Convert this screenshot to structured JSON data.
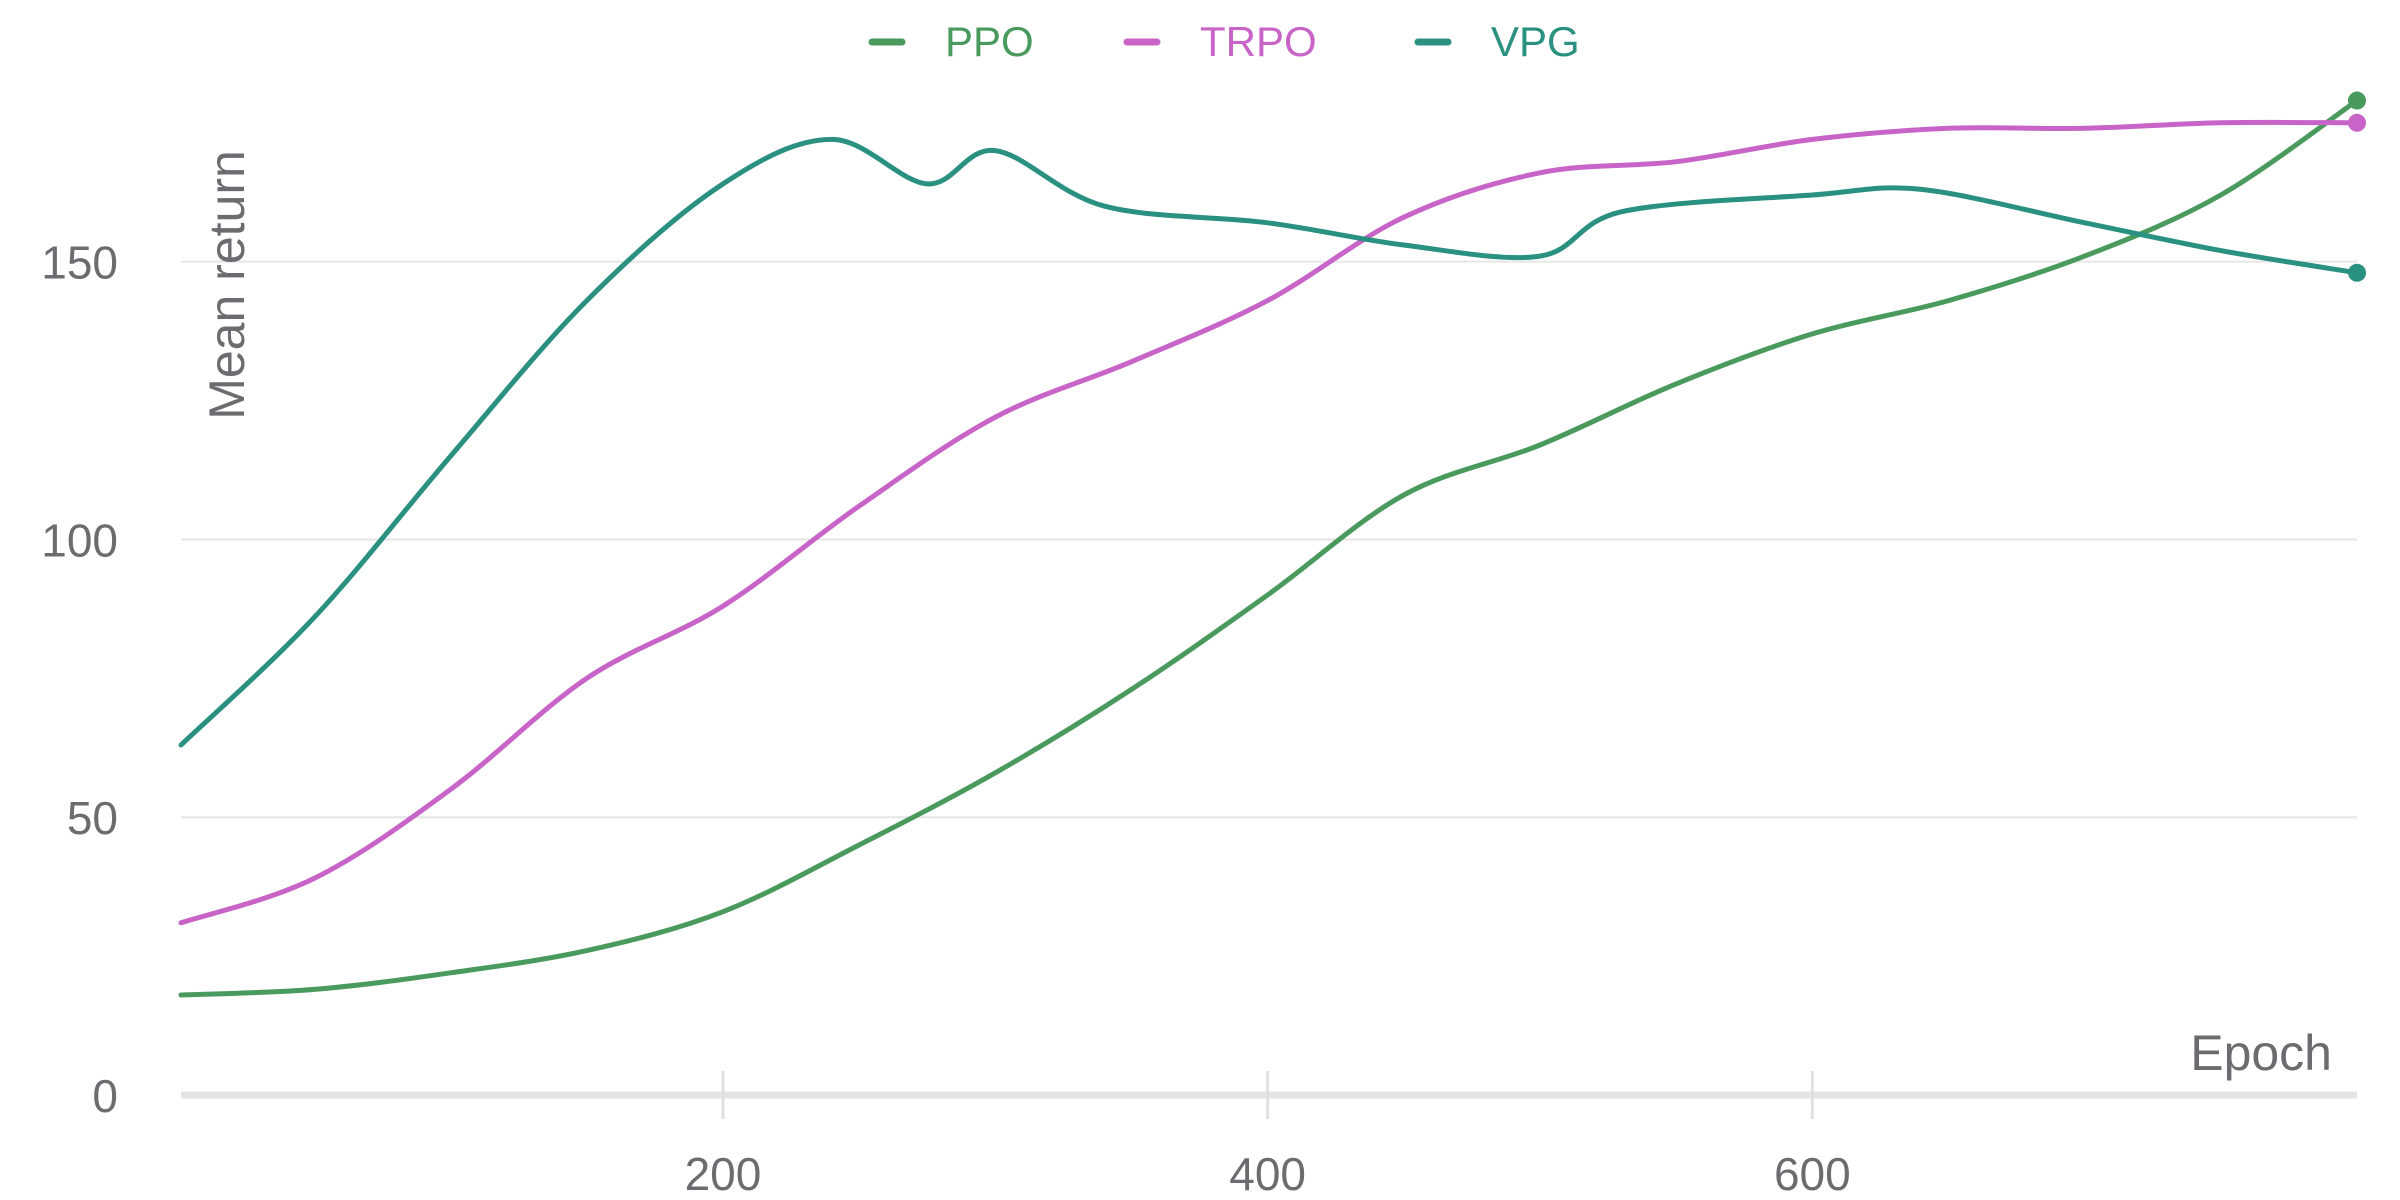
{
  "chart_data": {
    "type": "line",
    "title": "",
    "xlabel": "Epoch",
    "ylabel": "Mean return",
    "xlim": [
      1,
      800
    ],
    "ylim": [
      0,
      180
    ],
    "xticks": [
      200,
      400,
      600
    ],
    "yticks": [
      0,
      50,
      100,
      150
    ],
    "grid": "horizontal",
    "legend_position": "top-center",
    "series": [
      {
        "name": "PPO",
        "color": "#4a9a5e",
        "x": [
          1,
          50,
          100,
          150,
          200,
          250,
          300,
          350,
          400,
          450,
          500,
          550,
          600,
          650,
          700,
          750,
          800
        ],
        "values": [
          18,
          19,
          22,
          26,
          33,
          45,
          58,
          73,
          90,
          108,
          117,
          128,
          137,
          143,
          151,
          162,
          179
        ]
      },
      {
        "name": "TRPO",
        "color": "#c864c8",
        "x": [
          1,
          50,
          100,
          150,
          200,
          250,
          300,
          350,
          400,
          450,
          500,
          550,
          600,
          650,
          700,
          750,
          800
        ],
        "values": [
          31,
          39,
          55,
          75,
          88,
          106,
          122,
          132,
          143,
          158,
          166,
          168,
          172,
          174,
          174,
          175,
          175
        ]
      },
      {
        "name": "VPG",
        "color": "#2a9080",
        "x": [
          1,
          50,
          100,
          150,
          200,
          240,
          275,
          300,
          340,
          400,
          450,
          500,
          530,
          600,
          640,
          700,
          750,
          800
        ],
        "values": [
          63,
          86,
          115,
          143,
          164,
          172,
          164,
          170,
          160,
          157,
          153,
          151,
          159,
          162,
          163,
          157,
          152,
          148
        ]
      }
    ]
  }
}
